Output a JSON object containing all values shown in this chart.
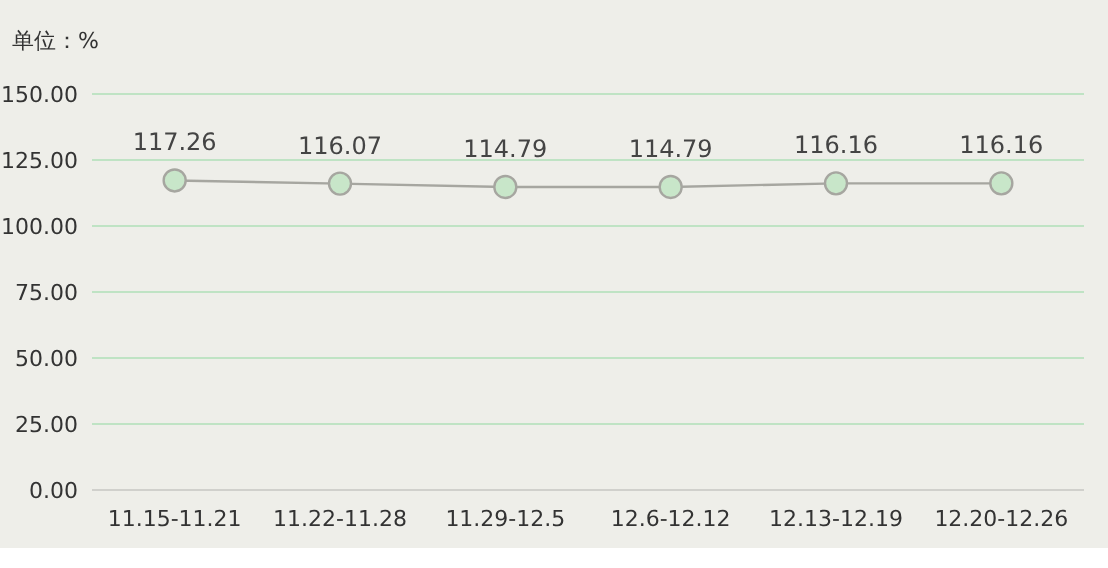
{
  "chart_data": {
    "type": "line",
    "ylabel": "单位：%",
    "categories": [
      "11.15-11.21",
      "11.22-11.28",
      "11.29-12.5",
      "12.6-12.12",
      "12.13-12.19",
      "12.20-12.26"
    ],
    "series": [
      {
        "color": "#a6a6a0",
        "values": [
          117.26,
          116.07,
          114.79,
          114.79,
          116.16,
          116.16
        ]
      }
    ],
    "ylim": [
      0,
      150
    ],
    "yticks": [
      {
        "value": 0,
        "label": "0.00"
      },
      {
        "value": 25,
        "label": "25.00"
      },
      {
        "value": 50,
        "label": "50.00"
      },
      {
        "value": 75,
        "label": "75.00"
      },
      {
        "value": 100,
        "label": "100.00"
      },
      {
        "value": 125,
        "label": "125.00"
      },
      {
        "value": 150,
        "label": "150.00"
      }
    ],
    "grid": "y",
    "marker": "circle",
    "data_labels": true
  }
}
